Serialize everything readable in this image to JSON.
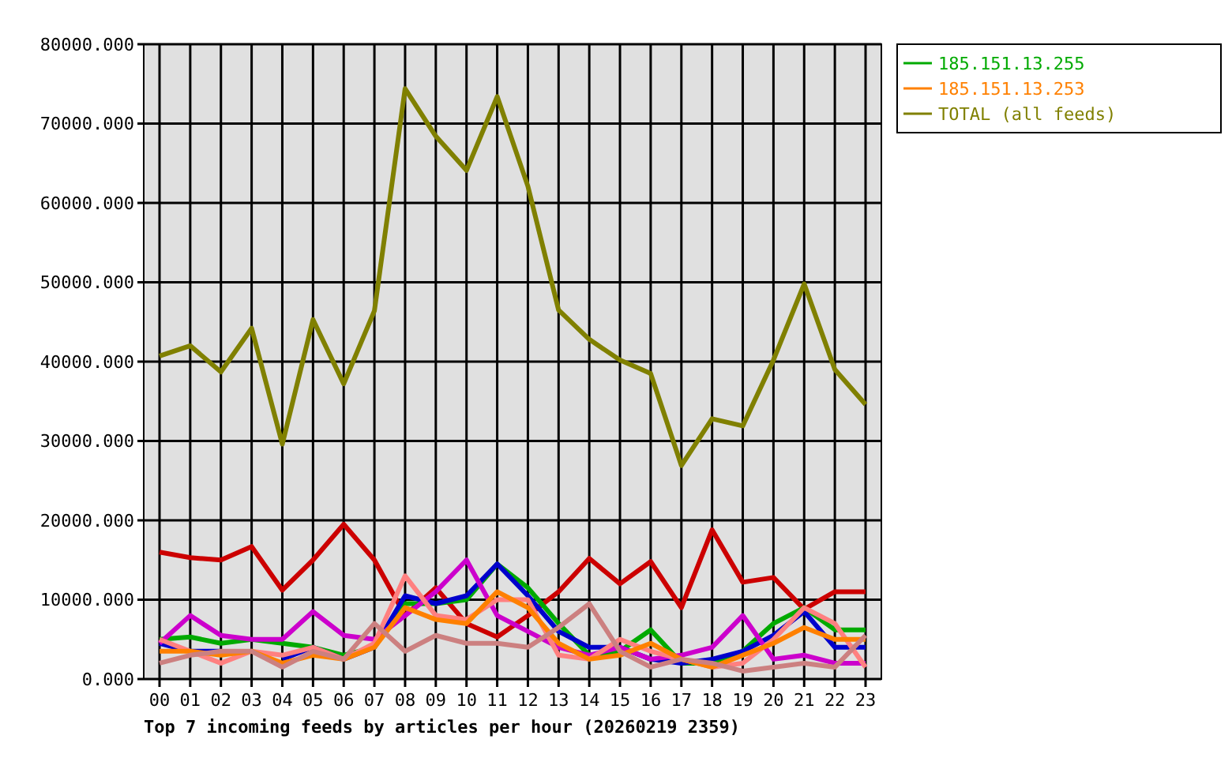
{
  "chart_data": {
    "type": "line",
    "title": "Top 7 incoming feeds by articles per hour (20260219 2359)",
    "categories": [
      "00",
      "01",
      "02",
      "03",
      "04",
      "05",
      "06",
      "07",
      "08",
      "09",
      "10",
      "11",
      "12",
      "13",
      "14",
      "15",
      "16",
      "17",
      "18",
      "19",
      "20",
      "21",
      "22",
      "23"
    ],
    "series": [
      {
        "color": "#cc0000",
        "values": [
          16000,
          15300,
          15000,
          16700,
          11200,
          15000,
          19500,
          15000,
          8000,
          11500,
          7000,
          5300,
          8000,
          11000,
          15200,
          12000,
          14800,
          9000,
          18800,
          12200,
          12800,
          8800,
          11000,
          11000
        ]
      },
      {
        "name": "185.151.13.255",
        "color": "#00aa00",
        "values": [
          5000,
          5300,
          4500,
          5000,
          4500,
          4000,
          3000,
          4000,
          9500,
          9500,
          10000,
          14500,
          11500,
          7000,
          3000,
          3500,
          6200,
          2000,
          2000,
          3500,
          7000,
          9000,
          6200,
          6200
        ]
      },
      {
        "color": "#0000cc",
        "values": [
          4500,
          3500,
          3500,
          null,
          2500,
          4000,
          2500,
          4000,
          10500,
          9500,
          10500,
          14500,
          10500,
          6000,
          4000,
          4000,
          2500,
          2000,
          2500,
          3500,
          5500,
          8500,
          4000,
          4000
        ]
      },
      {
        "color": "#cc00cc",
        "values": [
          4500,
          8000,
          5500,
          5000,
          5000,
          8500,
          5500,
          5000,
          8000,
          11000,
          15000,
          8000,
          6000,
          4000,
          3000,
          4000,
          2500,
          3000,
          4000,
          8000,
          2500,
          3000,
          2000,
          2000
        ]
      },
      {
        "color": "#ff8080",
        "values": [
          5000,
          3500,
          2000,
          3500,
          3000,
          4000,
          2500,
          4500,
          13000,
          8000,
          7500,
          10000,
          10000,
          3000,
          2500,
          5000,
          3500,
          2500,
          1500,
          2000,
          5000,
          9000,
          7000,
          1500
        ]
      },
      {
        "name": "185.151.13.253",
        "color": "#ff8000",
        "values": [
          3500,
          3500,
          3000,
          3500,
          2000,
          3000,
          2500,
          4000,
          9000,
          7500,
          7000,
          11000,
          9000,
          4500,
          2500,
          3000,
          4500,
          2500,
          1500,
          3000,
          4500,
          6500,
          5000,
          5000
        ]
      },
      {
        "color": "#cc8080",
        "values": [
          2000,
          3000,
          3500,
          3500,
          1500,
          3500,
          2500,
          7000,
          3500,
          5500,
          4500,
          4500,
          4000,
          6500,
          9500,
          3500,
          1500,
          2500,
          2000,
          1000,
          1500,
          2000,
          1500,
          5500
        ]
      },
      {
        "name": "TOTAL (all feeds)",
        "color": "#808000",
        "values": [
          40700,
          42000,
          38700,
          44200,
          29600,
          45300,
          37200,
          46400,
          74400,
          68400,
          64100,
          73400,
          62100,
          46500,
          42800,
          40200,
          38500,
          26900,
          32800,
          31900,
          40200,
          49800,
          39000,
          34600
        ]
      }
    ],
    "ylim": [
      0,
      80000
    ],
    "yticks": [
      {
        "value": 0,
        "label": "0.000"
      },
      {
        "value": 10000,
        "label": "10000.000"
      },
      {
        "value": 20000,
        "label": "20000.000"
      },
      {
        "value": 30000,
        "label": "30000.000"
      },
      {
        "value": 40000,
        "label": "40000.000"
      },
      {
        "value": 50000,
        "label": "50000.000"
      },
      {
        "value": 60000,
        "label": "60000.000"
      },
      {
        "value": 70000,
        "label": "70000.000"
      },
      {
        "value": 80000,
        "label": "80000.000"
      }
    ],
    "grid": true,
    "legend": "right",
    "marker": "none",
    "line_style": "solid"
  }
}
